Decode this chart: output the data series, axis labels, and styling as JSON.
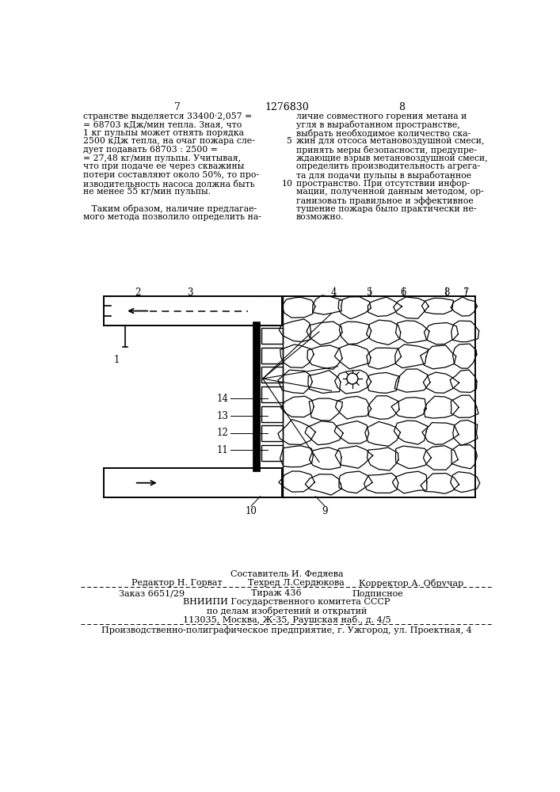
{
  "page_number_left": "7",
  "page_number_center": "1276830",
  "page_number_right": "8",
  "col_left_text": [
    "странстве выделяется 33400·2,057 =",
    "= 68703 кДж/мин тепла. Зная, что",
    "1 кг пульпы может отнять порядка",
    "2500 кДж тепла, на очаг пожара сле-",
    "дует подавать 68703 : 2500 =",
    "= 27,48 кг/мин пульпы. Учитывая,",
    "что при подаче ее через скважины",
    "потери составляют около 50%, то про-",
    "изводительность насоса должна быть",
    "не менее 55 кг/мин пульпы.",
    "",
    "   Таким образом, наличие предлагае-",
    "мого метода позволило определить на-"
  ],
  "col_right_text": [
    "личие совместного горения метана и",
    "угля в выработанном пространстве,",
    "выбрать необходимое количество ска-",
    "жин для отсоса метановоздушной смеси,",
    "принять меры безопасности, предупре-",
    "ждающие взрыв метановоздушной смеси,",
    "определить производительность агрега-",
    "та для подачи пульпы в выработанное",
    "пространство. При отсутствии инфор-",
    "мации, полученной данным методом, ор-",
    "ганизовать правильное и эффективное",
    "тушение пожара было практически не-",
    "возможно."
  ],
  "staff_line": "Составитель И. Федяева",
  "staff_line2": "Редактор Н. Горват",
  "staff_line2b": "Техред Л.Сердюкова",
  "staff_line2c": "Корректор А. Обручар",
  "order_line_a": "Заказ 6651/29",
  "order_line_b": "Тираж 436",
  "order_line_c": "Подписное",
  "org_line1": "ВНИИПИ Государственного комитета СССР",
  "org_line2": "по делам изобретений и открытий",
  "org_line3": "113035, Москва, Ж-35, Раушская наб., д. 4/5",
  "prod_line": "Производственно-полиграфическое предприятие, г. Ужгород, ул. Проектная, 4",
  "bg_color": "#ffffff",
  "text_color": "#000000"
}
